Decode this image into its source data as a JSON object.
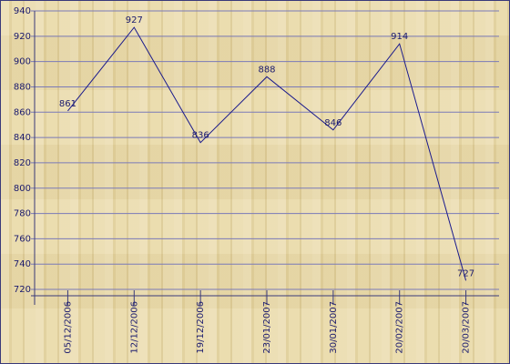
{
  "chart_data": {
    "type": "line",
    "categories": [
      "05/12/2006",
      "12/12/2006",
      "19/12/2006",
      "23/01/2007",
      "30/01/2007",
      "20/02/2007",
      "20/03/2007"
    ],
    "values": [
      861,
      927,
      836,
      888,
      846,
      914,
      727
    ],
    "color": "#1a1a8c",
    "ylim": [
      715,
      940
    ],
    "yticks": [
      720,
      740,
      760,
      780,
      800,
      820,
      840,
      860,
      880,
      900,
      920,
      940
    ],
    "grid": true
  }
}
